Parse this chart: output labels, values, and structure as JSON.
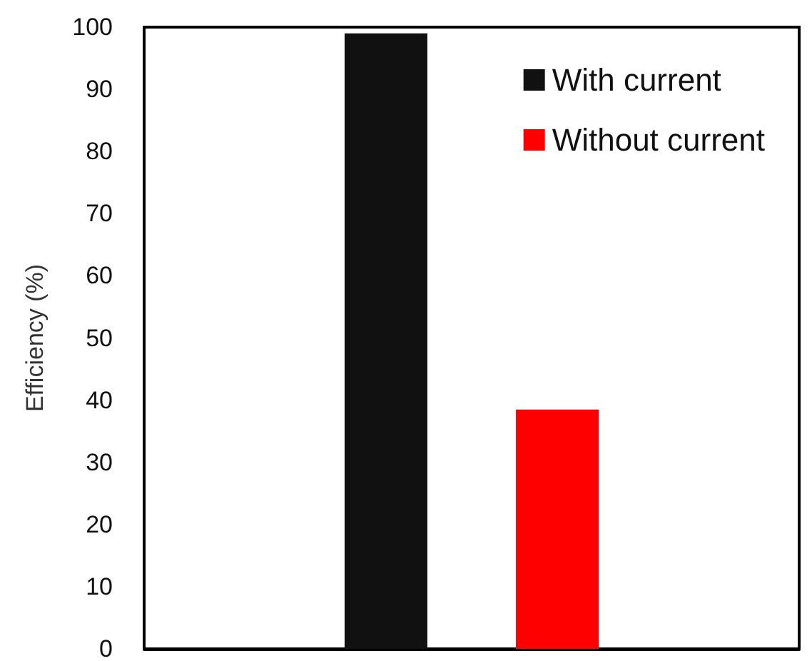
{
  "chart_data": {
    "type": "bar",
    "ylabel": "Efficiency (%)",
    "categories": [
      null
    ],
    "series": [
      {
        "name": "With current",
        "color": "#111111",
        "values": [
          99
        ]
      },
      {
        "name": "Without current",
        "color": "#ff0000",
        "values": [
          38.5
        ]
      }
    ],
    "ylim": [
      0,
      100
    ],
    "yticks": [
      0,
      10,
      20,
      30,
      40,
      50,
      60,
      70,
      80,
      90,
      100
    ],
    "grid": false,
    "legend": "top right"
  }
}
